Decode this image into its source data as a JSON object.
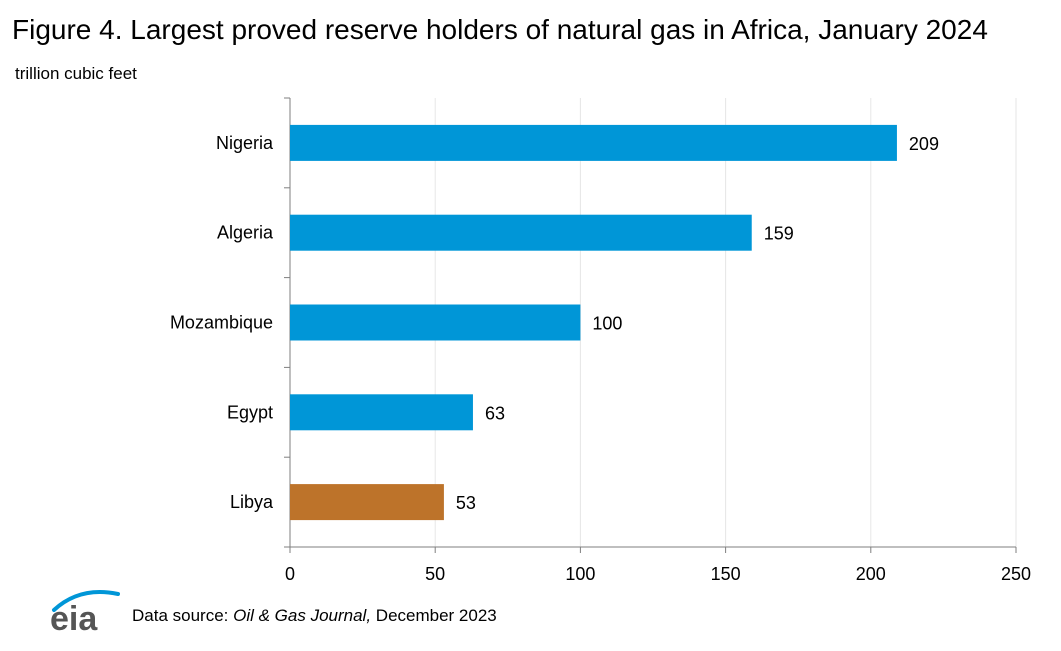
{
  "title": "Figure 4. Largest proved reserve holders of natural gas in Africa, January 2024",
  "units": "trillion cubic feet",
  "source": {
    "prefix": "Data source: ",
    "publication": "Oil & Gas Journal,",
    "suffix": " December 2023"
  },
  "logo_text": "eia",
  "chart_data": {
    "type": "bar",
    "orientation": "horizontal",
    "title": "Figure 4. Largest proved reserve holders of natural gas in Africa, January 2024",
    "ylabel": "trillion cubic feet",
    "categories": [
      "Nigeria",
      "Algeria",
      "Mozambique",
      "Egypt",
      "Libya"
    ],
    "values": [
      209,
      159,
      100,
      63,
      53
    ],
    "xlim": [
      0,
      250
    ],
    "xticks": [
      0,
      50,
      100,
      150,
      200,
      250
    ],
    "grid": true,
    "colors": [
      "#0096d7",
      "#0096d7",
      "#0096d7",
      "#0096d7",
      "#bd732a"
    ]
  },
  "colors": {
    "bar_primary": "#0096d7",
    "bar_highlight": "#bd732a",
    "grid": "#e6e6e6",
    "axis": "#7f7f7f",
    "logo_blue": "#0096d7"
  }
}
